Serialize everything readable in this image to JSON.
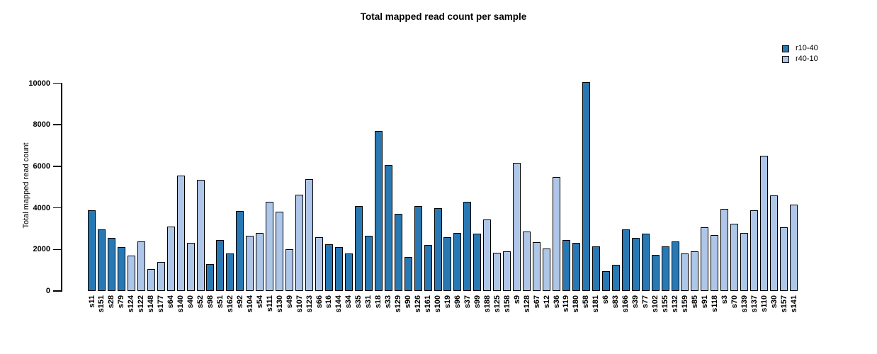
{
  "title": "Total mapped read count per sample",
  "legend": [
    {
      "label": "r10-40",
      "color": "#2878b4"
    },
    {
      "label": "r40-10",
      "color": "#aec6e8"
    }
  ],
  "chart_data": {
    "type": "bar",
    "title": "Total mapped read count per sample",
    "xlabel": "",
    "ylabel": "Total mapped read count",
    "ylim": [
      0,
      10000
    ],
    "yticks": [
      0,
      2000,
      4000,
      6000,
      8000,
      10000
    ],
    "grid": false,
    "legend_position": "top-right",
    "series_colors": {
      "r10-40": "#2878b4",
      "r40-10": "#aec6e8"
    },
    "bar_border_color": "#000000",
    "samples": [
      {
        "label": "s11",
        "value": 3900,
        "group": "r10-40"
      },
      {
        "label": "s151",
        "value": 2950,
        "group": "r10-40"
      },
      {
        "label": "s28",
        "value": 2550,
        "group": "r10-40"
      },
      {
        "label": "s79",
        "value": 2100,
        "group": "r10-40"
      },
      {
        "label": "s124",
        "value": 1700,
        "group": "r40-10"
      },
      {
        "label": "s122",
        "value": 2400,
        "group": "r40-10"
      },
      {
        "label": "s148",
        "value": 1050,
        "group": "r40-10"
      },
      {
        "label": "s177",
        "value": 1400,
        "group": "r40-10"
      },
      {
        "label": "s64",
        "value": 3100,
        "group": "r40-10"
      },
      {
        "label": "s140",
        "value": 5550,
        "group": "r40-10"
      },
      {
        "label": "s40",
        "value": 2300,
        "group": "r40-10"
      },
      {
        "label": "s52",
        "value": 5350,
        "group": "r40-10"
      },
      {
        "label": "s98",
        "value": 1300,
        "group": "r10-40"
      },
      {
        "label": "s51",
        "value": 2450,
        "group": "r10-40"
      },
      {
        "label": "s162",
        "value": 1800,
        "group": "r10-40"
      },
      {
        "label": "s92",
        "value": 3850,
        "group": "r10-40"
      },
      {
        "label": "s104",
        "value": 2650,
        "group": "r40-10"
      },
      {
        "label": "s54",
        "value": 2800,
        "group": "r40-10"
      },
      {
        "label": "s111",
        "value": 4300,
        "group": "r40-10"
      },
      {
        "label": "s130",
        "value": 3800,
        "group": "r40-10"
      },
      {
        "label": "s49",
        "value": 2000,
        "group": "r40-10"
      },
      {
        "label": "s107",
        "value": 4650,
        "group": "r40-10"
      },
      {
        "label": "s123",
        "value": 5400,
        "group": "r40-10"
      },
      {
        "label": "s66",
        "value": 2600,
        "group": "r40-10"
      },
      {
        "label": "s16",
        "value": 2250,
        "group": "r10-40"
      },
      {
        "label": "s144",
        "value": 2100,
        "group": "r10-40"
      },
      {
        "label": "s34",
        "value": 1800,
        "group": "r10-40"
      },
      {
        "label": "s35",
        "value": 4100,
        "group": "r10-40"
      },
      {
        "label": "s31",
        "value": 2650,
        "group": "r10-40"
      },
      {
        "label": "s18",
        "value": 7700,
        "group": "r10-40"
      },
      {
        "label": "s33",
        "value": 6050,
        "group": "r10-40"
      },
      {
        "label": "s129",
        "value": 3700,
        "group": "r10-40"
      },
      {
        "label": "s90",
        "value": 1650,
        "group": "r10-40"
      },
      {
        "label": "s126",
        "value": 4100,
        "group": "r10-40"
      },
      {
        "label": "s161",
        "value": 2200,
        "group": "r10-40"
      },
      {
        "label": "s100",
        "value": 4000,
        "group": "r10-40"
      },
      {
        "label": "s19",
        "value": 2600,
        "group": "r10-40"
      },
      {
        "label": "s96",
        "value": 2800,
        "group": "r10-40"
      },
      {
        "label": "s37",
        "value": 4300,
        "group": "r10-40"
      },
      {
        "label": "s99",
        "value": 2750,
        "group": "r10-40"
      },
      {
        "label": "s188",
        "value": 3450,
        "group": "r40-10"
      },
      {
        "label": "s125",
        "value": 1850,
        "group": "r40-10"
      },
      {
        "label": "s158",
        "value": 1900,
        "group": "r40-10"
      },
      {
        "label": "s9",
        "value": 6150,
        "group": "r40-10"
      },
      {
        "label": "s128",
        "value": 2850,
        "group": "r40-10"
      },
      {
        "label": "s67",
        "value": 2350,
        "group": "r40-10"
      },
      {
        "label": "s12",
        "value": 2050,
        "group": "r40-10"
      },
      {
        "label": "s36",
        "value": 5500,
        "group": "r40-10"
      },
      {
        "label": "s119",
        "value": 2450,
        "group": "r10-40"
      },
      {
        "label": "s180",
        "value": 2300,
        "group": "r10-40"
      },
      {
        "label": "s58",
        "value": 10050,
        "group": "r10-40"
      },
      {
        "label": "s181",
        "value": 2150,
        "group": "r10-40"
      },
      {
        "label": "s6",
        "value": 950,
        "group": "r10-40"
      },
      {
        "label": "s83",
        "value": 1250,
        "group": "r10-40"
      },
      {
        "label": "s166",
        "value": 2950,
        "group": "r10-40"
      },
      {
        "label": "s39",
        "value": 2550,
        "group": "r10-40"
      },
      {
        "label": "s77",
        "value": 2750,
        "group": "r10-40"
      },
      {
        "label": "s102",
        "value": 1750,
        "group": "r10-40"
      },
      {
        "label": "s155",
        "value": 2150,
        "group": "r10-40"
      },
      {
        "label": "s132",
        "value": 2400,
        "group": "r10-40"
      },
      {
        "label": "s159",
        "value": 1800,
        "group": "r40-10"
      },
      {
        "label": "s85",
        "value": 1900,
        "group": "r40-10"
      },
      {
        "label": "s91",
        "value": 3050,
        "group": "r40-10"
      },
      {
        "label": "s118",
        "value": 2700,
        "group": "r40-10"
      },
      {
        "label": "s3",
        "value": 3950,
        "group": "r40-10"
      },
      {
        "label": "s70",
        "value": 3250,
        "group": "r40-10"
      },
      {
        "label": "s139",
        "value": 2800,
        "group": "r40-10"
      },
      {
        "label": "s137",
        "value": 3900,
        "group": "r40-10"
      },
      {
        "label": "s110",
        "value": 6500,
        "group": "r40-10"
      },
      {
        "label": "s30",
        "value": 4600,
        "group": "r40-10"
      },
      {
        "label": "s157",
        "value": 3050,
        "group": "r40-10"
      },
      {
        "label": "s141",
        "value": 4150,
        "group": "r40-10"
      }
    ]
  }
}
